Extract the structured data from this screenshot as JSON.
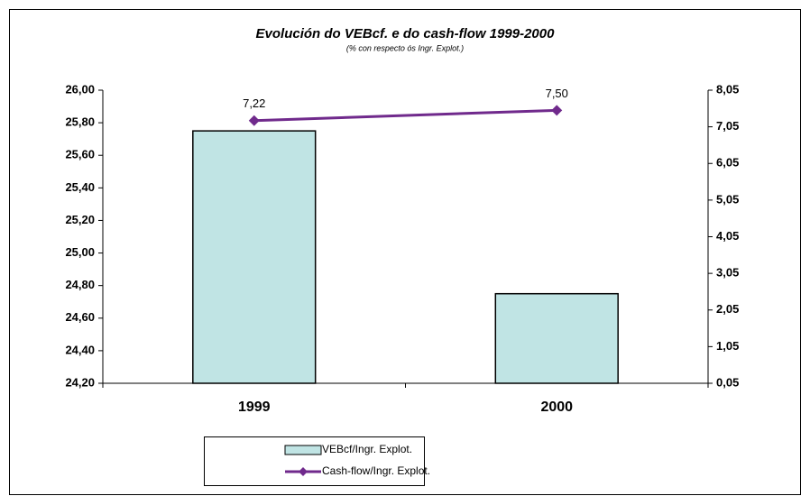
{
  "chart_data": {
    "type": "bar",
    "title": "Evolución do VEBcf. e do cash-flow 1999-2000",
    "subtitle": "(% con respecto ós Ingr. Explot.)",
    "categories": [
      "1999",
      "2000"
    ],
    "series": [
      {
        "name": "VEBcf/Ingr. Explot.",
        "type": "bar",
        "color": "#c0e4e4",
        "axis": "y",
        "values": [
          25.75,
          24.75
        ]
      },
      {
        "name": "Cash-flow/Ingr. Explot.",
        "type": "line",
        "color": "#702a8c",
        "axis": "y2",
        "values": [
          7.22,
          7.5
        ],
        "value_labels": [
          "7,22",
          "7,50"
        ]
      }
    ],
    "ylim": [
      24.2,
      26.0
    ],
    "yticks": [
      {
        "value": 24.2,
        "label": "24,20"
      },
      {
        "value": 24.4,
        "label": "24,40"
      },
      {
        "value": 24.6,
        "label": "24,60"
      },
      {
        "value": 24.8,
        "label": "24,80"
      },
      {
        "value": 25.0,
        "label": "25,00"
      },
      {
        "value": 25.2,
        "label": "25,20"
      },
      {
        "value": 25.4,
        "label": "25,40"
      },
      {
        "value": 25.6,
        "label": "25,60"
      },
      {
        "value": 25.8,
        "label": "25,80"
      },
      {
        "value": 26.0,
        "label": "26,00"
      }
    ],
    "y2lim": [
      0.05,
      8.05
    ],
    "y2ticks": [
      {
        "value": 0.05,
        "label": "0,05"
      },
      {
        "value": 1.05,
        "label": "1,05"
      },
      {
        "value": 2.05,
        "label": "2,05"
      },
      {
        "value": 3.05,
        "label": "3,05"
      },
      {
        "value": 4.05,
        "label": "4,05"
      },
      {
        "value": 5.05,
        "label": "5,05"
      },
      {
        "value": 6.05,
        "label": "6,05"
      },
      {
        "value": 7.05,
        "label": "7,05"
      },
      {
        "value": 8.05,
        "label": "8,05"
      }
    ],
    "legend": "bottom"
  }
}
